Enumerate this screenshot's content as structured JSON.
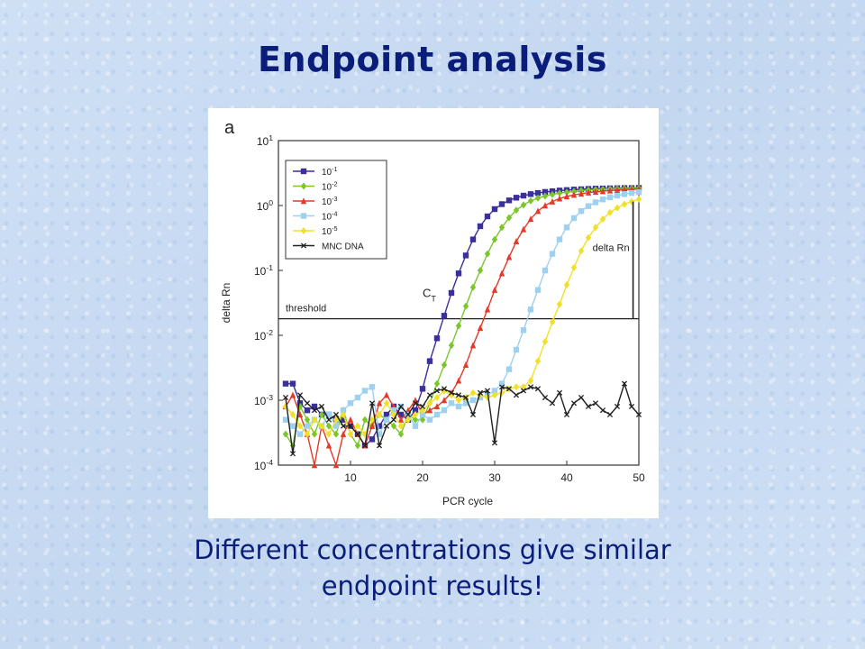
{
  "slide": {
    "title": "Endpoint analysis",
    "caption_line1": "Different concentrations give similar",
    "caption_line2": "endpoint results!"
  },
  "chart_data": {
    "type": "line",
    "panel_label": "a",
    "xlabel": "PCR cycle",
    "ylabel": "delta Rn",
    "x_ticks": [
      10,
      20,
      30,
      40,
      50
    ],
    "y_ticks": [
      {
        "base": "10",
        "exp": "1"
      },
      {
        "base": "10",
        "exp": "0"
      },
      {
        "base": "10",
        "exp": "-1"
      },
      {
        "base": "10",
        "exp": "-2"
      },
      {
        "base": "10",
        "exp": "-3"
      },
      {
        "base": "10",
        "exp": "-4"
      }
    ],
    "xlim": [
      0,
      50
    ],
    "ylim": [
      0.0001,
      10
    ],
    "y_scale": "log",
    "threshold": {
      "value": 0.018,
      "label": "threshold"
    },
    "annotations": {
      "ct": {
        "base": "C",
        "sub": "T"
      },
      "delta_rn": "delta Rn"
    },
    "legend_position": "top-left",
    "series": [
      {
        "name": {
          "base": "10",
          "exp": "-1"
        },
        "color": "#3b2f9a",
        "marker": "square",
        "x": [
          1,
          2,
          3,
          4,
          5,
          6,
          7,
          8,
          9,
          10,
          11,
          12,
          13,
          14,
          15,
          16,
          17,
          18,
          19,
          20,
          21,
          22,
          23,
          24,
          25,
          26,
          27,
          28,
          29,
          30,
          31,
          32,
          33,
          34,
          35,
          36,
          37,
          38,
          39,
          40,
          41,
          42,
          43,
          44,
          45,
          46,
          47,
          48,
          49,
          50
        ],
        "y": [
          0.0018,
          0.0018,
          0.0009,
          0.0007,
          0.0008,
          0.0006,
          0.0006,
          0.0005,
          0.0005,
          0.0004,
          0.0003,
          0.0002,
          0.00025,
          0.0004,
          0.0006,
          0.0008,
          0.0006,
          0.0005,
          0.0007,
          0.0015,
          0.004,
          0.009,
          0.02,
          0.045,
          0.09,
          0.17,
          0.3,
          0.48,
          0.68,
          0.88,
          1.05,
          1.2,
          1.32,
          1.42,
          1.5,
          1.56,
          1.62,
          1.66,
          1.7,
          1.73,
          1.76,
          1.78,
          1.8,
          1.82,
          1.83,
          1.84,
          1.85,
          1.86,
          1.86,
          1.87
        ]
      },
      {
        "name": {
          "base": "10",
          "exp": "-2"
        },
        "color": "#7bc62d",
        "marker": "diamond",
        "x": [
          1,
          2,
          3,
          4,
          5,
          6,
          7,
          8,
          9,
          10,
          11,
          12,
          13,
          14,
          15,
          16,
          17,
          18,
          19,
          20,
          21,
          22,
          23,
          24,
          25,
          26,
          27,
          28,
          29,
          30,
          31,
          32,
          33,
          34,
          35,
          36,
          37,
          38,
          39,
          40,
          41,
          42,
          43,
          44,
          45,
          46,
          47,
          48,
          49,
          50
        ],
        "y": [
          0.0003,
          0.0002,
          0.0008,
          0.0005,
          0.0003,
          0.0006,
          0.0004,
          0.0003,
          0.0007,
          0.0003,
          0.0002,
          0.0005,
          0.0004,
          0.0006,
          0.0005,
          0.0004,
          0.0003,
          0.0006,
          0.0005,
          0.0005,
          0.0009,
          0.0018,
          0.0035,
          0.007,
          0.014,
          0.028,
          0.055,
          0.1,
          0.18,
          0.3,
          0.46,
          0.65,
          0.85,
          1.02,
          1.18,
          1.3,
          1.4,
          1.48,
          1.55,
          1.6,
          1.65,
          1.7,
          1.73,
          1.76,
          1.78,
          1.8,
          1.82,
          1.83,
          1.84,
          1.85
        ]
      },
      {
        "name": {
          "base": "10",
          "exp": "-3"
        },
        "color": "#e23a2a",
        "marker": "triangle",
        "x": [
          1,
          2,
          3,
          4,
          5,
          6,
          7,
          8,
          9,
          10,
          11,
          12,
          13,
          14,
          15,
          16,
          17,
          18,
          19,
          20,
          21,
          22,
          23,
          24,
          25,
          26,
          27,
          28,
          29,
          30,
          31,
          32,
          33,
          34,
          35,
          36,
          37,
          38,
          39,
          40,
          41,
          42,
          43,
          44,
          45,
          46,
          47,
          48,
          49,
          50
        ],
        "y": [
          0.0008,
          0.0012,
          0.0006,
          0.0003,
          0.0001,
          0.0004,
          0.0002,
          0.0001,
          0.0003,
          0.0005,
          0.0003,
          0.0002,
          0.0004,
          0.0009,
          0.0012,
          0.0008,
          0.0005,
          0.0007,
          0.001,
          0.0006,
          0.0007,
          0.0008,
          0.001,
          0.0013,
          0.002,
          0.0035,
          0.007,
          0.013,
          0.025,
          0.05,
          0.09,
          0.16,
          0.28,
          0.43,
          0.62,
          0.82,
          1.0,
          1.15,
          1.28,
          1.38,
          1.46,
          1.52,
          1.58,
          1.62,
          1.66,
          1.7,
          1.73,
          1.76,
          1.78,
          1.8
        ]
      },
      {
        "name": {
          "base": "10",
          "exp": "-4"
        },
        "color": "#9ed0ef",
        "marker": "square",
        "x": [
          1,
          2,
          3,
          4,
          5,
          6,
          7,
          8,
          9,
          10,
          11,
          12,
          13,
          14,
          15,
          16,
          17,
          18,
          19,
          20,
          21,
          22,
          23,
          24,
          25,
          26,
          27,
          28,
          29,
          30,
          31,
          32,
          33,
          34,
          35,
          36,
          37,
          38,
          39,
          40,
          41,
          42,
          43,
          44,
          45,
          46,
          47,
          48,
          49,
          50
        ],
        "y": [
          0.0005,
          0.0004,
          0.0003,
          0.0004,
          0.0005,
          0.0004,
          0.0006,
          0.0004,
          0.0007,
          0.0009,
          0.0011,
          0.0014,
          0.0016,
          0.0003,
          0.0005,
          0.0007,
          0.0008,
          0.0006,
          0.0004,
          0.0006,
          0.0005,
          0.0006,
          0.0007,
          0.0009,
          0.0008,
          0.0009,
          0.001,
          0.0011,
          0.0012,
          0.0014,
          0.0018,
          0.003,
          0.006,
          0.012,
          0.025,
          0.05,
          0.1,
          0.18,
          0.3,
          0.46,
          0.64,
          0.82,
          0.98,
          1.12,
          1.24,
          1.34,
          1.42,
          1.5,
          1.56,
          1.6
        ]
      },
      {
        "name": {
          "base": "10",
          "exp": "-5"
        },
        "color": "#f1e02a",
        "marker": "diamond",
        "x": [
          1,
          2,
          3,
          4,
          5,
          6,
          7,
          8,
          9,
          10,
          11,
          12,
          13,
          14,
          15,
          16,
          17,
          18,
          19,
          20,
          21,
          22,
          23,
          24,
          25,
          26,
          27,
          28,
          29,
          30,
          31,
          32,
          33,
          34,
          35,
          36,
          37,
          38,
          39,
          40,
          41,
          42,
          43,
          44,
          45,
          46,
          47,
          48,
          49,
          50
        ],
        "y": [
          0.0008,
          0.0006,
          0.0004,
          0.0003,
          0.0005,
          0.0004,
          0.0003,
          0.0005,
          0.0006,
          0.0003,
          0.0004,
          0.0003,
          0.0005,
          0.0006,
          0.0009,
          0.0006,
          0.0004,
          0.0005,
          0.0006,
          0.0007,
          0.0009,
          0.0011,
          0.0014,
          0.0012,
          0.001,
          0.0011,
          0.0013,
          0.0012,
          0.0011,
          0.0012,
          0.0013,
          0.0015,
          0.0016,
          0.0016,
          0.002,
          0.004,
          0.008,
          0.016,
          0.03,
          0.06,
          0.11,
          0.2,
          0.32,
          0.46,
          0.62,
          0.78,
          0.92,
          1.05,
          1.15,
          1.25
        ]
      },
      {
        "name": "MNC DNA",
        "color": "#222222",
        "marker": "x",
        "x": [
          1,
          2,
          3,
          4,
          5,
          6,
          7,
          8,
          9,
          10,
          11,
          12,
          13,
          14,
          15,
          16,
          17,
          18,
          19,
          20,
          21,
          22,
          23,
          24,
          25,
          26,
          27,
          28,
          29,
          30,
          31,
          32,
          33,
          34,
          35,
          36,
          37,
          38,
          39,
          40,
          41,
          42,
          43,
          44,
          45,
          46,
          47,
          48,
          49,
          50
        ],
        "y": [
          0.0011,
          0.00015,
          0.0012,
          0.0009,
          0.0007,
          0.0008,
          0.0005,
          0.0006,
          0.0004,
          0.0004,
          0.0003,
          0.0002,
          0.0009,
          0.0002,
          0.0004,
          0.0005,
          0.0008,
          0.0006,
          0.0009,
          0.0008,
          0.0012,
          0.0014,
          0.0015,
          0.0013,
          0.0012,
          0.0011,
          0.0006,
          0.0013,
          0.0014,
          0.00022,
          0.0016,
          0.0015,
          0.0012,
          0.0014,
          0.0016,
          0.0015,
          0.0011,
          0.0009,
          0.0013,
          0.0006,
          0.0009,
          0.0011,
          0.0008,
          0.0009,
          0.0007,
          0.0006,
          0.0008,
          0.0018,
          0.0008,
          0.0006
        ]
      }
    ]
  }
}
